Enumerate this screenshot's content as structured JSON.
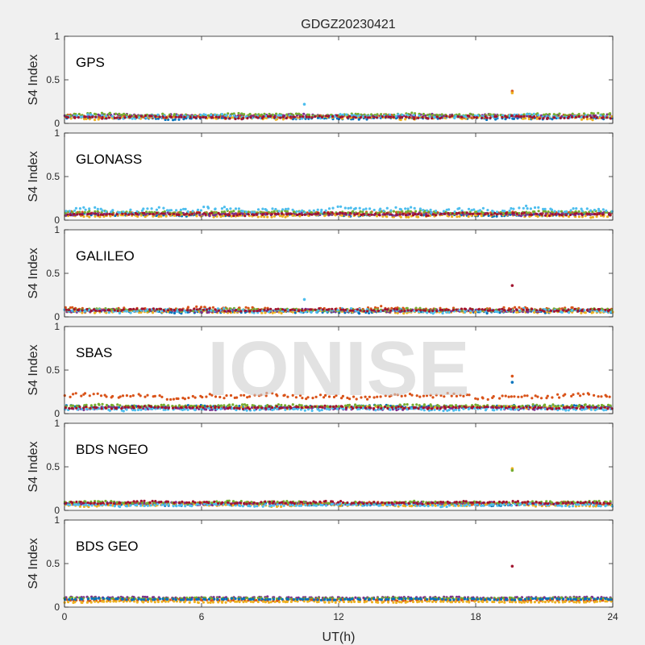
{
  "figure": {
    "title": "GDGZ20230421",
    "watermark": "IONISE",
    "background": "#f0f0f0"
  },
  "chart_data": {
    "type": "scatter",
    "title": "GDGZ20230421",
    "xlabel": "UT(h)",
    "ylabel": "S4 Index",
    "xlim": [
      0,
      24
    ],
    "ylim": [
      0,
      1
    ],
    "xticks": [
      "0",
      "6",
      "12",
      "18",
      "24"
    ],
    "yticks": [
      "0",
      "0.5",
      "1"
    ],
    "grid": false,
    "series_colors": [
      "#0072BD",
      "#D95319",
      "#EDB120",
      "#7E2F8E",
      "#77AC30",
      "#4DBEEE",
      "#A2142F"
    ],
    "panels": [
      {
        "name": "GPS",
        "background": "#ffffff",
        "bands": [
          {
            "color": "#0072BD",
            "base": 0.06,
            "amp": 0.02
          },
          {
            "color": "#D95319",
            "base": 0.08,
            "amp": 0.02
          },
          {
            "color": "#EDB120",
            "base": 0.07,
            "amp": 0.03
          },
          {
            "color": "#7E2F8E",
            "base": 0.09,
            "amp": 0.02
          },
          {
            "color": "#77AC30",
            "base": 0.1,
            "amp": 0.02
          },
          {
            "color": "#4DBEEE",
            "base": 0.08,
            "amp": 0.03
          },
          {
            "color": "#A2142F",
            "base": 0.07,
            "amp": 0.02
          }
        ],
        "outliers": [
          {
            "x": 19.6,
            "y": 0.37,
            "color": "#D95319"
          },
          {
            "x": 19.6,
            "y": 0.35,
            "color": "#EDB120"
          },
          {
            "x": 10.5,
            "y": 0.22,
            "color": "#4DBEEE"
          }
        ]
      },
      {
        "name": "GLONASS",
        "background": "#ffffff",
        "bands": [
          {
            "color": "#0072BD",
            "base": 0.06,
            "amp": 0.02
          },
          {
            "color": "#D95319",
            "base": 0.08,
            "amp": 0.02
          },
          {
            "color": "#EDB120",
            "base": 0.05,
            "amp": 0.02
          },
          {
            "color": "#7E2F8E",
            "base": 0.07,
            "amp": 0.02
          },
          {
            "color": "#77AC30",
            "base": 0.09,
            "amp": 0.02
          },
          {
            "color": "#4DBEEE",
            "base": 0.12,
            "amp": 0.04
          },
          {
            "color": "#A2142F",
            "base": 0.07,
            "amp": 0.02
          }
        ],
        "outliers": []
      },
      {
        "name": "GALILEO",
        "background": "#ffffff",
        "bands": [
          {
            "color": "#0072BD",
            "base": 0.06,
            "amp": 0.02
          },
          {
            "color": "#D95319",
            "base": 0.09,
            "amp": 0.03
          },
          {
            "color": "#EDB120",
            "base": 0.06,
            "amp": 0.02
          },
          {
            "color": "#7E2F8E",
            "base": 0.07,
            "amp": 0.02
          },
          {
            "color": "#77AC30",
            "base": 0.08,
            "amp": 0.02
          },
          {
            "color": "#4DBEEE",
            "base": 0.07,
            "amp": 0.03
          },
          {
            "color": "#A2142F",
            "base": 0.08,
            "amp": 0.02
          }
        ],
        "outliers": [
          {
            "x": 19.6,
            "y": 0.36,
            "color": "#A2142F"
          },
          {
            "x": 10.5,
            "y": 0.2,
            "color": "#4DBEEE"
          }
        ]
      },
      {
        "name": "SBAS",
        "background": "#ffffff",
        "bands": [
          {
            "color": "#D95319",
            "base": 0.2,
            "amp": 0.04
          },
          {
            "color": "#0072BD",
            "base": 0.08,
            "amp": 0.02
          },
          {
            "color": "#EDB120",
            "base": 0.07,
            "amp": 0.02
          },
          {
            "color": "#7E2F8E",
            "base": 0.06,
            "amp": 0.02
          },
          {
            "color": "#77AC30",
            "base": 0.09,
            "amp": 0.02
          },
          {
            "color": "#4DBEEE",
            "base": 0.05,
            "amp": 0.02
          },
          {
            "color": "#A2142F",
            "base": 0.07,
            "amp": 0.02
          }
        ],
        "outliers": [
          {
            "x": 19.6,
            "y": 0.43,
            "color": "#D95319"
          },
          {
            "x": 19.6,
            "y": 0.36,
            "color": "#0072BD"
          }
        ]
      },
      {
        "name": "BDS NGEO",
        "background": "#ffffff",
        "bands": [
          {
            "color": "#0072BD",
            "base": 0.07,
            "amp": 0.02
          },
          {
            "color": "#D95319",
            "base": 0.08,
            "amp": 0.02
          },
          {
            "color": "#EDB120",
            "base": 0.06,
            "amp": 0.02
          },
          {
            "color": "#7E2F8E",
            "base": 0.08,
            "amp": 0.02
          },
          {
            "color": "#77AC30",
            "base": 0.09,
            "amp": 0.02
          },
          {
            "color": "#4DBEEE",
            "base": 0.06,
            "amp": 0.02
          },
          {
            "color": "#A2142F",
            "base": 0.09,
            "amp": 0.02
          }
        ],
        "outliers": [
          {
            "x": 19.6,
            "y": 0.48,
            "color": "#EDB120"
          },
          {
            "x": 19.6,
            "y": 0.46,
            "color": "#77AC30"
          }
        ]
      },
      {
        "name": "BDS GEO",
        "background": "#ffffff",
        "bands": [
          {
            "color": "#7E2F8E",
            "base": 0.11,
            "amp": 0.01
          },
          {
            "color": "#77AC30",
            "base": 0.1,
            "amp": 0.01
          },
          {
            "color": "#D95319",
            "base": 0.08,
            "amp": 0.01
          },
          {
            "color": "#EDB120",
            "base": 0.06,
            "amp": 0.01
          },
          {
            "color": "#0072BD",
            "base": 0.09,
            "amp": 0.01
          }
        ],
        "outliers": [
          {
            "x": 19.6,
            "y": 0.47,
            "color": "#A2142F"
          }
        ]
      }
    ]
  }
}
